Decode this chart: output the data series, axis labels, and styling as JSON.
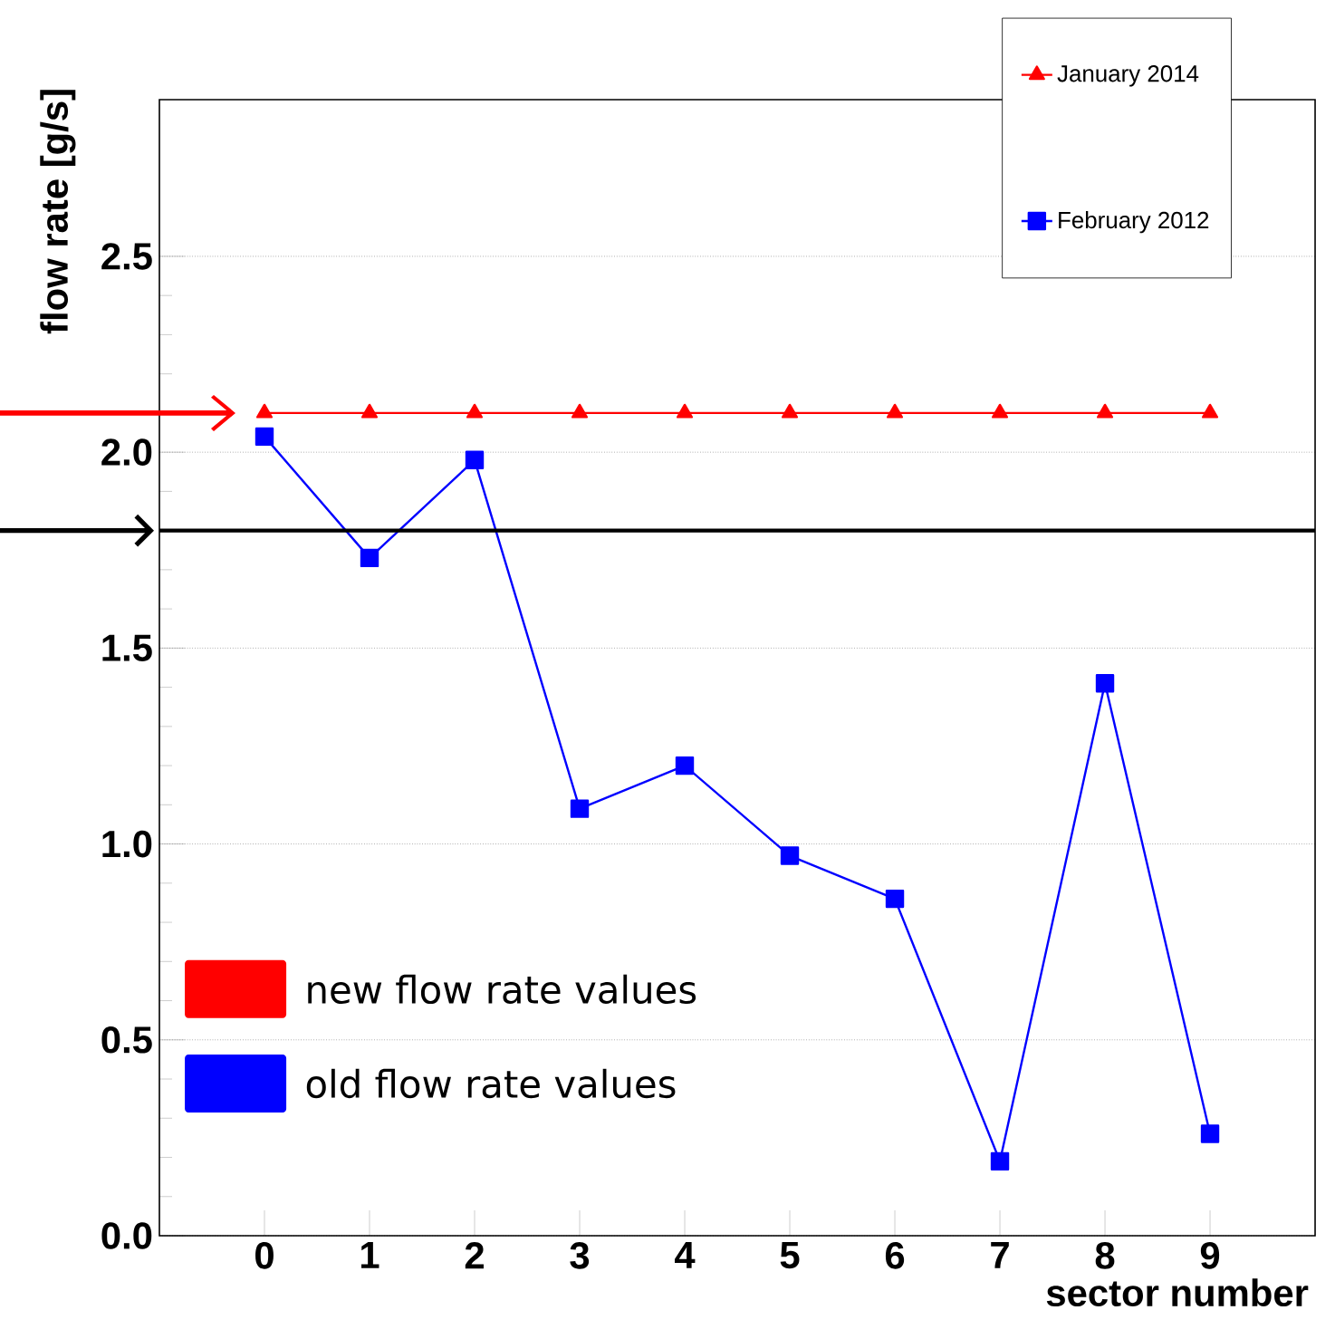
{
  "chart_data": {
    "type": "line",
    "xlabel": "sector number",
    "ylabel": "flow rate [g/s]",
    "x": [
      0,
      1,
      2,
      3,
      4,
      5,
      6,
      7,
      8,
      9
    ],
    "xlim": [
      -1,
      10
    ],
    "xticks": [
      0,
      1,
      2,
      3,
      4,
      5,
      6,
      7,
      8,
      9
    ],
    "ylim": [
      0,
      2.9
    ],
    "yticks": [
      {
        "value": 0,
        "label": "0.0"
      },
      {
        "value": 0.5,
        "label": "0.5"
      },
      {
        "value": 1,
        "label": "1.0"
      },
      {
        "value": 1.5,
        "label": "1.5"
      },
      {
        "value": 2,
        "label": "2.0"
      },
      {
        "value": 2.5,
        "label": "2.5"
      }
    ],
    "grid": "y",
    "legend": "top right",
    "series": [
      {
        "name": "January 2014",
        "color": "#ff0000",
        "marker": "triangle",
        "values": [
          2.1,
          2.1,
          2.1,
          2.1,
          2.1,
          2.1,
          2.1,
          2.1,
          2.1,
          2.1
        ]
      },
      {
        "name": "February 2012",
        "color": "#0000ff",
        "marker": "square",
        "values": [
          2.04,
          1.73,
          1.98,
          1.09,
          1.2,
          0.97,
          0.86,
          0.19,
          1.41,
          0.26
        ]
      }
    ],
    "ref_lines": [
      {
        "axis": "y",
        "value": 1.8,
        "color": "#000000"
      }
    ],
    "annotations": [
      "new flow rate values",
      "old flow rate values"
    ]
  }
}
